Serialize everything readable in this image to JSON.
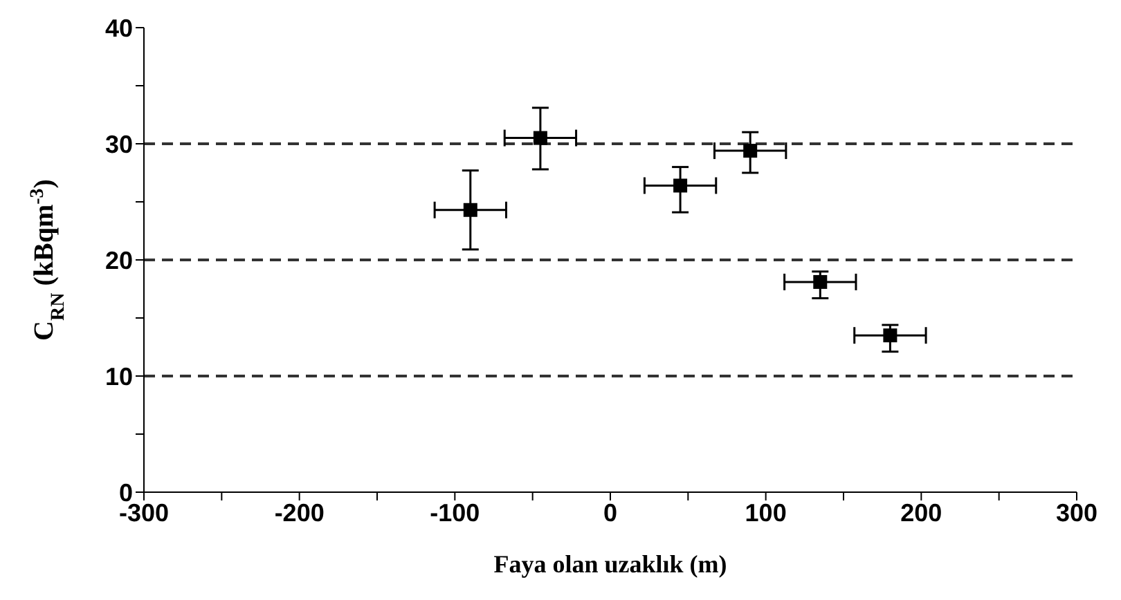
{
  "chart_data": {
    "type": "scatter",
    "xlabel": "Faya olan uzaklık (m)",
    "ylabel": "C$_{RN}$ (kBqm$^{-3}$)",
    "x": [
      -90,
      -45,
      45,
      90,
      135,
      180
    ],
    "values": [
      24.3,
      30.5,
      26.4,
      29.4,
      18.1,
      13.5
    ],
    "errors": [
      [
        20.9,
        27.7
      ],
      [
        27.8,
        33.1
      ],
      [
        24.1,
        28
      ],
      [
        27.5,
        31
      ],
      [
        16.7,
        19
      ],
      [
        12.1,
        14.4
      ]
    ],
    "xerrors": [
      23,
      23,
      23,
      23,
      23,
      23
    ],
    "color": "#000000",
    "marker": "square",
    "xlim": [
      -300,
      300
    ],
    "xticks": [
      -300,
      {
        "value": -250,
        "label": null
      },
      -200,
      {
        "value": -150,
        "label": null
      },
      -100,
      {
        "value": -50,
        "label": null
      },
      0,
      {
        "value": 50,
        "label": null
      },
      100,
      {
        "value": 150,
        "label": null
      },
      200,
      {
        "value": 250,
        "label": null
      },
      300
    ],
    "ylim": [
      0,
      40
    ],
    "yticks": [
      0,
      {
        "value": 5,
        "label": null
      },
      10,
      {
        "value": 15,
        "label": null
      },
      20,
      {
        "value": 25,
        "label": null
      },
      30,
      {
        "value": 35,
        "label": null
      },
      40
    ],
    "ref_lines": [
      {
        "axis": "y",
        "value": 10,
        "line_style": "dashed",
        "color": "#333333"
      },
      {
        "axis": "y",
        "value": 20,
        "line_style": "dashed",
        "color": "#333333"
      },
      {
        "axis": "y",
        "value": 30,
        "line_style": "dashed",
        "color": "#333333"
      }
    ]
  }
}
